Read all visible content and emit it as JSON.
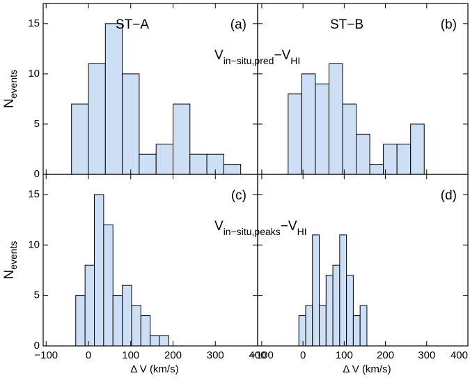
{
  "chart_data": [
    {
      "type": "histogram",
      "label": "(a)",
      "title": "ST−A",
      "annotation": [
        "V",
        "in−situ,pred",
        "−V",
        "HI"
      ],
      "ylabel": [
        "N",
        "events"
      ],
      "bins": [
        -40,
        0,
        40,
        80,
        120,
        160,
        200,
        240,
        280,
        320,
        360
      ],
      "values": [
        7,
        11,
        15,
        10,
        2,
        3,
        7,
        2,
        2,
        1
      ],
      "color": "#cddff5",
      "xlim": [
        -107,
        400
      ],
      "ylim": [
        0,
        17
      ],
      "xticks": [
        -100,
        0,
        100,
        200,
        300,
        400
      ],
      "yticks": [
        0,
        5,
        10,
        15
      ],
      "xtick_labels": false,
      "ytick_labels": true
    },
    {
      "type": "histogram",
      "label": "(b)",
      "title": "ST−B",
      "bins": [
        -36,
        -3,
        30,
        63,
        96,
        129,
        162,
        195,
        228,
        261,
        294
      ],
      "values": [
        8,
        10,
        9,
        11,
        7,
        4,
        1,
        3,
        3,
        5
      ],
      "color": "#cddff5",
      "xlim": [
        -110,
        400
      ],
      "ylim": [
        0,
        17
      ],
      "xticks": [
        -100,
        0,
        100,
        200,
        300,
        400
      ],
      "yticks": [
        0,
        5,
        10,
        15
      ],
      "xtick_labels": false,
      "ytick_labels": false
    },
    {
      "type": "histogram",
      "label": "(c)",
      "annotation": [
        "V",
        "in−situ,peaks",
        "−V",
        "HI"
      ],
      "xlabel": "Δ V (km/s)",
      "ylabel": [
        "N",
        "events"
      ],
      "bins": [
        -30,
        -8,
        14,
        36,
        58,
        80,
        102,
        124,
        146,
        168,
        190
      ],
      "values": [
        5,
        8,
        15,
        12,
        5,
        6,
        4,
        3,
        1,
        1
      ],
      "color": "#cddff5",
      "xlim": [
        -107,
        400
      ],
      "ylim": [
        0,
        17
      ],
      "xticks": [
        {
          "value": -100,
          "label": "−100"
        },
        0,
        100,
        200,
        300,
        400
      ],
      "yticks": [
        0,
        5,
        10,
        15
      ],
      "xtick_labels": true,
      "ytick_labels": true
    },
    {
      "type": "histogram",
      "label": "(d)",
      "xlabel": "Δ V (km/s)",
      "bins": [
        -10,
        6.5,
        23,
        39.5,
        56,
        72.5,
        89,
        105.5,
        122,
        138.5,
        155
      ],
      "values": [
        3,
        4,
        11,
        4,
        7,
        8,
        11,
        7,
        3,
        4
      ],
      "color": "#cddff5",
      "xlim": [
        -110,
        400
      ],
      "ylim": [
        0,
        17
      ],
      "xticks": [
        {
          "value": -100,
          "label": "−100"
        },
        0,
        100,
        200,
        300,
        400
      ],
      "yticks": [
        0,
        5,
        10,
        15
      ],
      "xtick_labels": true,
      "ytick_labels": false
    }
  ]
}
